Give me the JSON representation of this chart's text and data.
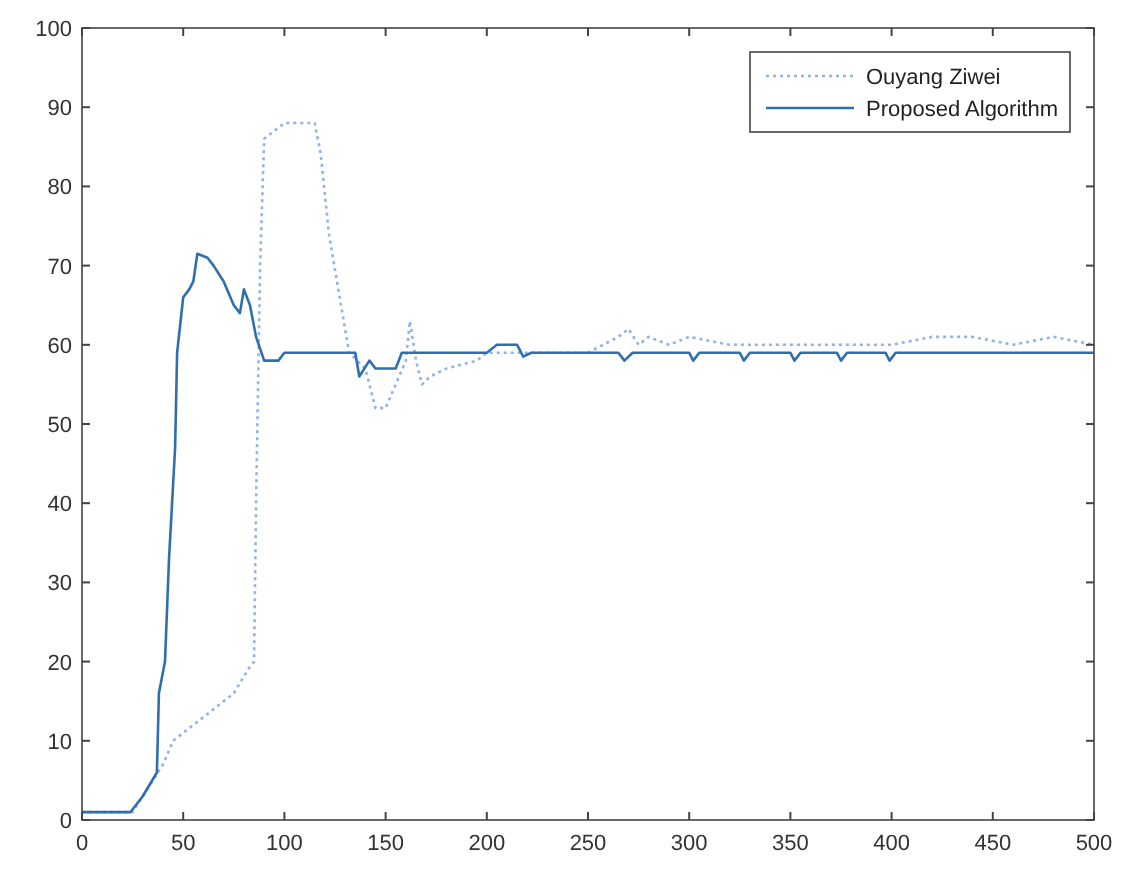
{
  "chart_data": {
    "type": "line",
    "xlim": [
      0,
      500
    ],
    "ylim": [
      0,
      100
    ],
    "xticks": [
      0,
      50,
      100,
      150,
      200,
      250,
      300,
      350,
      400,
      450,
      500
    ],
    "yticks": [
      0,
      10,
      20,
      30,
      40,
      50,
      60,
      70,
      80,
      90,
      100
    ],
    "grid": false,
    "legend": "top right",
    "series": [
      {
        "name": "Ouyang Ziwei",
        "color": "#8fb3e8",
        "line_style": "dotted",
        "x": [
          0,
          20,
          25,
          30,
          35,
          40,
          45,
          55,
          65,
          75,
          82,
          85,
          86,
          88,
          90,
          95,
          100,
          115,
          118,
          122,
          128,
          132,
          140,
          145,
          150,
          155,
          160,
          162,
          165,
          168,
          172,
          180,
          195,
          200,
          220,
          250,
          265,
          270,
          275,
          280,
          290,
          300,
          320,
          350,
          380,
          400,
          420,
          440,
          460,
          480,
          500
        ],
        "values": [
          1,
          1,
          1,
          3,
          5,
          7,
          10,
          12,
          14,
          16,
          19,
          20,
          40,
          70,
          86,
          87,
          88,
          88,
          84,
          74,
          65,
          59,
          57,
          52,
          52,
          55,
          58,
          63,
          58,
          55,
          56,
          57,
          58,
          59,
          59,
          59,
          61,
          62,
          60,
          61,
          60,
          61,
          60,
          60,
          60,
          60,
          61,
          61,
          60,
          61,
          60
        ]
      },
      {
        "name": "Proposed Algorithm",
        "color": "#2f6fb0",
        "line_style": "solid",
        "x": [
          0,
          24,
          30,
          37,
          38,
          41,
          43,
          46,
          47,
          50,
          53,
          55,
          57,
          62,
          65,
          70,
          75,
          78,
          80,
          83,
          86,
          90,
          97,
          100,
          135,
          137,
          142,
          145,
          155,
          158,
          200,
          205,
          215,
          218,
          222,
          265,
          268,
          272,
          300,
          302,
          305,
          325,
          327,
          330,
          350,
          352,
          355,
          373,
          375,
          378,
          397,
          399,
          402,
          500
        ],
        "values": [
          1,
          1,
          3,
          6,
          16,
          20,
          33,
          47,
          59,
          66,
          67,
          68,
          71.5,
          71,
          70,
          68,
          65,
          64,
          67,
          65,
          61,
          58,
          58,
          59,
          59,
          56,
          58,
          57,
          57,
          59,
          59,
          60,
          60,
          58.5,
          59,
          59,
          58,
          59,
          59,
          58,
          59,
          59,
          58,
          59,
          59,
          58,
          59,
          59,
          58,
          59,
          59,
          58,
          59,
          59
        ]
      }
    ]
  }
}
